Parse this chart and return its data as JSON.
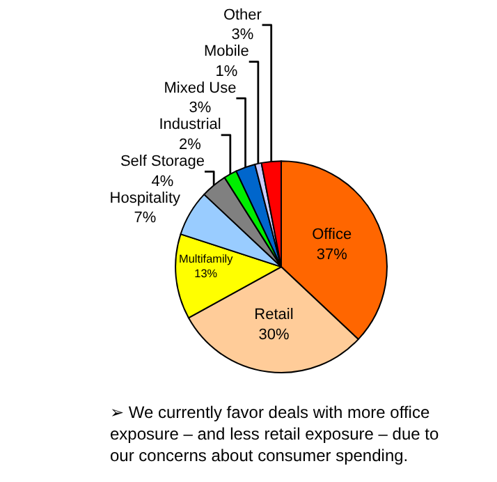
{
  "chart_data": {
    "type": "pie",
    "categories": [
      "Office",
      "Retail",
      "Multifamily",
      "Hospitality",
      "Self Storage",
      "Industrial",
      "Mixed Use",
      "Mobile",
      "Other"
    ],
    "values": [
      37,
      30,
      13,
      7,
      4,
      2,
      3,
      1,
      3
    ],
    "value_labels": [
      "37%",
      "30%",
      "13%",
      "7%",
      "4%",
      "2%",
      "3%",
      "1%",
      "3%"
    ],
    "colors": [
      "#ff6600",
      "#ffcc99",
      "#ffff00",
      "#99ccff",
      "#808080",
      "#00ee00",
      "#0066cc",
      "#ccccff",
      "#ff0000"
    ],
    "annotations": [
      "➢ We currently favor deals with more office exposure – and less retail exposure – due to our concerns about consumer spending."
    ],
    "legend": false
  }
}
